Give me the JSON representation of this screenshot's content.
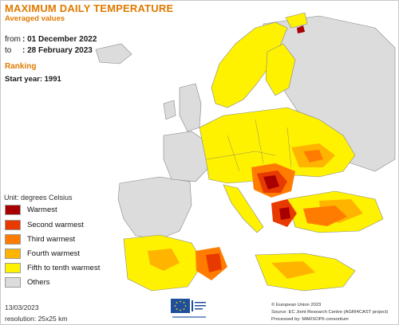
{
  "header": {
    "title": "MAXIMUM DAILY TEMPERATURE",
    "subtitle": "Averaged values"
  },
  "period": {
    "from_label": "from",
    "from_value": ": 01 December 2022",
    "to_label": "to",
    "to_value": ": 28 February 2023"
  },
  "ranking": {
    "label": "Ranking",
    "start_year": "Start year: 1991"
  },
  "legend": {
    "unit": "Unit: degrees Celsius",
    "items": [
      {
        "label": "Warmest",
        "color": "#a80000"
      },
      {
        "label": "Second warmest",
        "color": "#e83a00"
      },
      {
        "label": "Third warmest",
        "color": "#ff7c00"
      },
      {
        "label": "Fourth warmest",
        "color": "#ffb400"
      },
      {
        "label": "Fifth to tenth warmest",
        "color": "#fff200"
      },
      {
        "label": "Others",
        "color": "#dcdcdc"
      }
    ]
  },
  "footer": {
    "date": "13/03/2023",
    "resolution": "resolution: 25x25 km",
    "credit_line1": "© European Union 2023",
    "credit_line2": "Source: EC Joint Research Centre (AGRI4CAST project)",
    "credit_line3": "Processed by: MARSOP6 consortium"
  },
  "colors": {
    "accent": "#e07a00",
    "sea": "#ffffff",
    "outline": "#777777"
  }
}
